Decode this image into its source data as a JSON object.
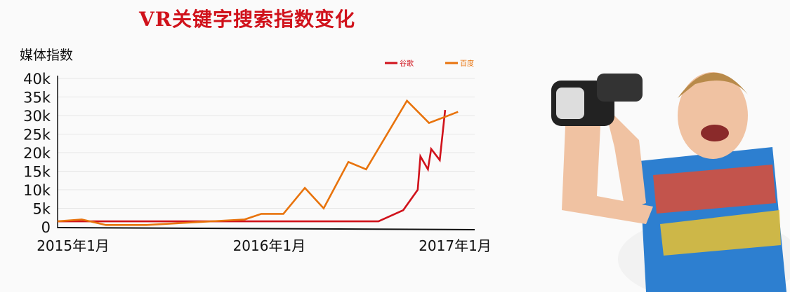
{
  "chart_data": {
    "type": "line",
    "title": "VR关键字搜索指数变化",
    "ylabel": "媒体指数",
    "xlabel": "",
    "ylim": [
      0,
      40000
    ],
    "yticks": [
      0,
      5000,
      10000,
      15000,
      20000,
      25000,
      30000,
      35000,
      40000
    ],
    "ytick_labels": [
      "0",
      "5k",
      "10k",
      "15k",
      "20k",
      "25k",
      "30k",
      "35k",
      "40k"
    ],
    "xlim": [
      "2015-01-01",
      "2017-02-15"
    ],
    "xticks": [
      "2015-01-01",
      "2016-01-01",
      "2017-01-01"
    ],
    "xtick_labels": [
      "2015年1月",
      "2016年1月",
      "2017年1月"
    ],
    "grid": true,
    "legend": "top-right",
    "series": [
      {
        "name": "谷歌",
        "color": "#d0121b",
        "points": [
          [
            "2015-01-01",
            1500
          ],
          [
            "2016-08-20",
            1500
          ],
          [
            "2016-10-05",
            4500
          ],
          [
            "2016-11-01",
            10000
          ],
          [
            "2016-11-06",
            19000
          ],
          [
            "2016-11-20",
            15500
          ],
          [
            "2016-11-26",
            21000
          ],
          [
            "2016-12-12",
            18000
          ],
          [
            "2016-12-22",
            31500
          ]
        ]
      },
      {
        "name": "百度",
        "color": "#e8730c",
        "points": [
          [
            "2015-01-01",
            1500
          ],
          [
            "2015-02-15",
            2000
          ],
          [
            "2015-04-01",
            500
          ],
          [
            "2015-06-15",
            500
          ],
          [
            "2015-12-15",
            2000
          ],
          [
            "2016-01-15",
            3500
          ],
          [
            "2016-02-25",
            3500
          ],
          [
            "2016-04-05",
            10500
          ],
          [
            "2016-05-10",
            5000
          ],
          [
            "2016-06-25",
            17500
          ],
          [
            "2016-07-28",
            15500
          ],
          [
            "2016-10-12",
            34000
          ],
          [
            "2016-11-22",
            28000
          ],
          [
            "2017-01-15",
            31000
          ]
        ]
      }
    ]
  }
}
